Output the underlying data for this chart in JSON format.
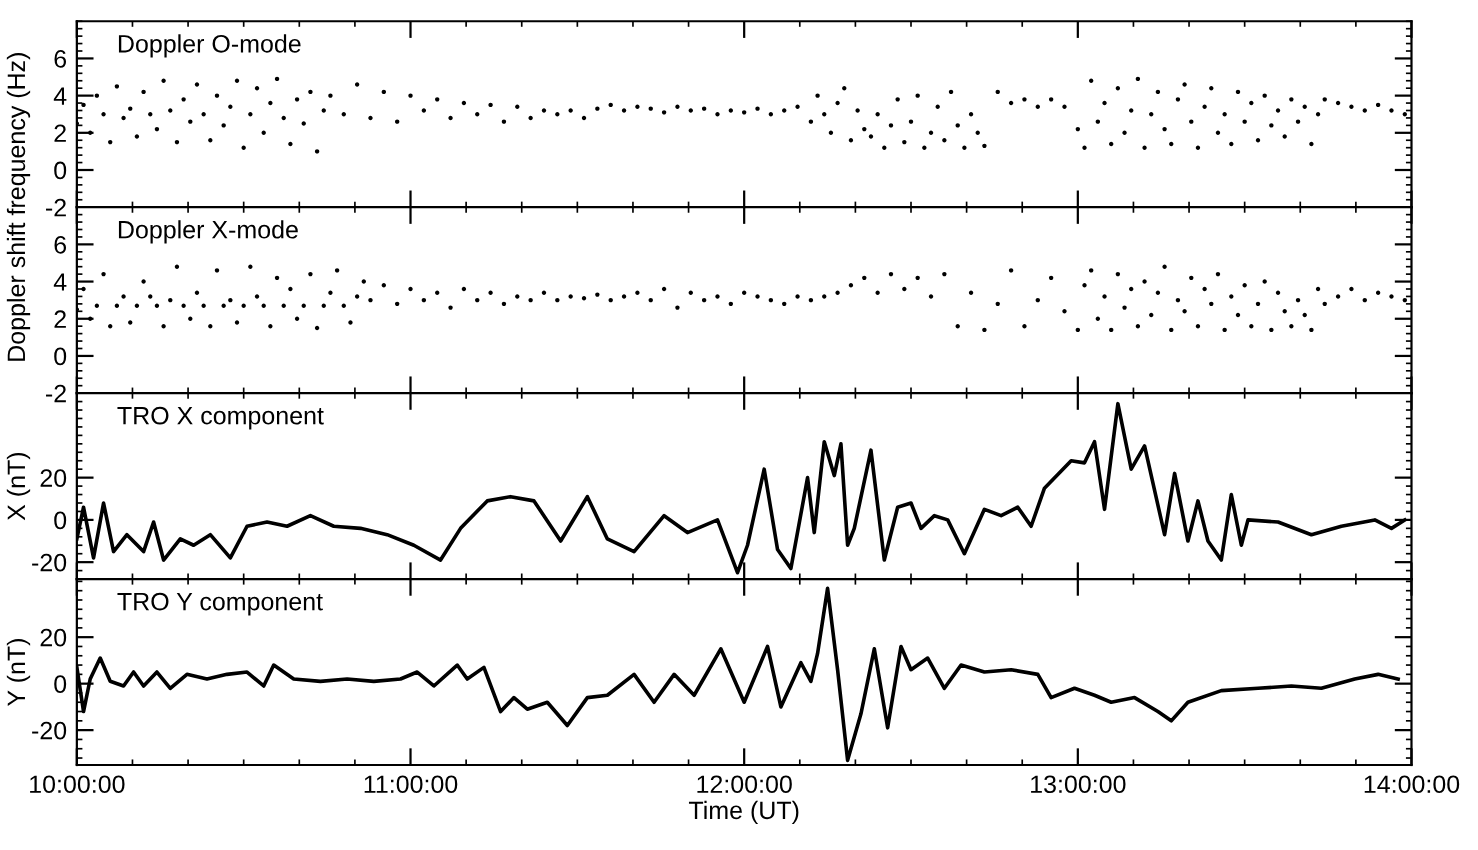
{
  "chart_data": [
    {
      "type": "scatter",
      "marker": "circle",
      "annotations": [
        "Doppler O-mode"
      ],
      "ylabel": "Doppler shift frequency (Hz)",
      "tick_labels": "y",
      "xlim": [
        10,
        14
      ],
      "ylim": [
        -2,
        8
      ],
      "yticks": [
        -2,
        0,
        2,
        4,
        6
      ],
      "xticks": [
        {
          "value": 10,
          "label": null
        },
        {
          "value": 11,
          "label": null
        },
        {
          "value": 12,
          "label": null
        },
        {
          "value": 13,
          "label": null
        },
        {
          "value": 14,
          "label": null
        }
      ],
      "series": [
        {
          "color": "#000000",
          "x": [
            10.0,
            10.02,
            10.04,
            10.06,
            10.08,
            10.1,
            10.12,
            10.14,
            10.16,
            10.18,
            10.2,
            10.22,
            10.24,
            10.26,
            10.28,
            10.3,
            10.32,
            10.34,
            10.36,
            10.38,
            10.4,
            10.42,
            10.44,
            10.46,
            10.48,
            10.5,
            10.52,
            10.54,
            10.56,
            10.58,
            10.6,
            10.62,
            10.64,
            10.66,
            10.68,
            10.7,
            10.72,
            10.74,
            10.76,
            10.8,
            10.84,
            10.88,
            10.92,
            10.96,
            11.0,
            11.04,
            11.08,
            11.12,
            11.16,
            11.2,
            11.24,
            11.28,
            11.32,
            11.36,
            11.4,
            11.44,
            11.48,
            11.52,
            11.56,
            11.6,
            11.64,
            11.68,
            11.72,
            11.76,
            11.8,
            11.84,
            11.88,
            11.92,
            11.96,
            12.0,
            12.04,
            12.08,
            12.12,
            12.16,
            12.2,
            12.22,
            12.24,
            12.26,
            12.28,
            12.3,
            12.32,
            12.34,
            12.36,
            12.38,
            12.4,
            12.42,
            12.44,
            12.46,
            12.48,
            12.5,
            12.52,
            12.54,
            12.56,
            12.58,
            12.6,
            12.62,
            12.64,
            12.66,
            12.68,
            12.7,
            12.72,
            12.76,
            12.8,
            12.84,
            12.88,
            12.92,
            12.96,
            13.0,
            13.02,
            13.04,
            13.06,
            13.08,
            13.1,
            13.12,
            13.14,
            13.16,
            13.18,
            13.2,
            13.22,
            13.24,
            13.26,
            13.28,
            13.3,
            13.32,
            13.34,
            13.36,
            13.38,
            13.4,
            13.42,
            13.44,
            13.46,
            13.48,
            13.5,
            13.52,
            13.54,
            13.56,
            13.58,
            13.6,
            13.62,
            13.64,
            13.66,
            13.68,
            13.7,
            13.72,
            13.74,
            13.78,
            13.82,
            13.86,
            13.9,
            13.94,
            13.98
          ],
          "values": [
            2.5,
            3.5,
            2.0,
            4.0,
            3.0,
            1.5,
            4.5,
            2.8,
            3.3,
            1.8,
            4.2,
            3.0,
            2.2,
            4.8,
            3.2,
            1.5,
            3.8,
            2.6,
            4.6,
            3.0,
            1.6,
            4.0,
            2.4,
            3.4,
            4.8,
            1.2,
            3.0,
            4.4,
            2.0,
            3.6,
            4.9,
            2.8,
            1.4,
            3.8,
            2.5,
            4.2,
            1.0,
            3.2,
            4.0,
            3.0,
            4.6,
            2.8,
            4.2,
            2.6,
            4.0,
            3.2,
            3.8,
            2.8,
            3.6,
            3.0,
            3.5,
            2.6,
            3.4,
            2.8,
            3.2,
            3.0,
            3.2,
            2.8,
            3.3,
            3.5,
            3.2,
            3.4,
            3.3,
            3.1,
            3.4,
            3.2,
            3.3,
            3.0,
            3.2,
            3.1,
            3.3,
            3.0,
            3.2,
            3.4,
            2.6,
            4.0,
            3.0,
            2.0,
            3.6,
            4.4,
            1.6,
            3.2,
            2.2,
            1.8,
            3.0,
            1.2,
            2.4,
            3.8,
            1.5,
            2.6,
            4.0,
            1.2,
            2.0,
            3.4,
            1.6,
            4.2,
            2.4,
            1.2,
            3.0,
            2.0,
            1.3,
            4.2,
            3.6,
            3.8,
            3.4,
            3.8,
            3.4,
            2.2,
            1.2,
            4.8,
            2.6,
            3.6,
            1.4,
            4.4,
            2.0,
            3.2,
            4.9,
            1.2,
            3.0,
            4.2,
            2.2,
            1.4,
            3.8,
            4.6,
            2.6,
            1.2,
            3.4,
            4.4,
            2.0,
            3.0,
            1.4,
            4.2,
            2.6,
            3.6,
            1.6,
            4.0,
            2.4,
            3.2,
            1.8,
            3.8,
            2.6,
            3.4,
            1.4,
            3.0,
            3.8,
            3.6,
            3.4,
            3.2,
            3.5,
            3.2,
            3.0
          ]
        }
      ]
    },
    {
      "type": "scatter",
      "marker": "circle",
      "annotations": [
        "Doppler X-mode"
      ],
      "tick_labels": "y",
      "xlim": [
        10,
        14
      ],
      "ylim": [
        -2,
        8
      ],
      "yticks": [
        -2,
        0,
        2,
        4,
        6
      ],
      "xticks": [
        {
          "value": 10,
          "label": null
        },
        {
          "value": 11,
          "label": null
        },
        {
          "value": 12,
          "label": null
        },
        {
          "value": 13,
          "label": null
        },
        {
          "value": 14,
          "label": null
        }
      ],
      "series": [
        {
          "color": "#000000",
          "x": [
            10.0,
            10.02,
            10.04,
            10.06,
            10.08,
            10.1,
            10.12,
            10.14,
            10.16,
            10.18,
            10.2,
            10.22,
            10.24,
            10.26,
            10.28,
            10.3,
            10.32,
            10.34,
            10.36,
            10.38,
            10.4,
            10.42,
            10.44,
            10.46,
            10.48,
            10.5,
            10.52,
            10.54,
            10.56,
            10.58,
            10.6,
            10.62,
            10.64,
            10.66,
            10.68,
            10.7,
            10.72,
            10.74,
            10.76,
            10.78,
            10.8,
            10.82,
            10.84,
            10.86,
            10.88,
            10.92,
            10.96,
            11.0,
            11.04,
            11.08,
            11.12,
            11.16,
            11.2,
            11.24,
            11.28,
            11.32,
            11.36,
            11.4,
            11.44,
            11.48,
            11.52,
            11.56,
            11.6,
            11.64,
            11.68,
            11.72,
            11.76,
            11.8,
            11.84,
            11.88,
            11.92,
            11.96,
            12.0,
            12.04,
            12.08,
            12.12,
            12.16,
            12.2,
            12.24,
            12.28,
            12.32,
            12.36,
            12.4,
            12.44,
            12.48,
            12.52,
            12.56,
            12.6,
            12.64,
            12.68,
            12.72,
            12.76,
            12.8,
            12.84,
            12.88,
            12.92,
            12.96,
            13.0,
            13.02,
            13.04,
            13.06,
            13.08,
            13.1,
            13.12,
            13.14,
            13.16,
            13.18,
            13.2,
            13.22,
            13.24,
            13.26,
            13.28,
            13.3,
            13.32,
            13.34,
            13.36,
            13.38,
            13.4,
            13.42,
            13.44,
            13.46,
            13.48,
            13.5,
            13.52,
            13.54,
            13.56,
            13.58,
            13.6,
            13.62,
            13.64,
            13.66,
            13.68,
            13.7,
            13.72,
            13.74,
            13.78,
            13.82,
            13.86,
            13.9,
            13.94,
            13.98
          ],
          "values": [
            2.5,
            3.6,
            2.0,
            2.7,
            4.4,
            1.6,
            2.7,
            3.2,
            1.8,
            2.7,
            4.0,
            3.2,
            2.7,
            1.6,
            3.0,
            4.8,
            2.7,
            2.0,
            3.4,
            2.7,
            1.6,
            4.6,
            2.7,
            3.0,
            1.8,
            2.7,
            4.8,
            3.2,
            2.7,
            1.6,
            4.2,
            2.7,
            3.6,
            2.0,
            2.7,
            4.4,
            1.5,
            2.7,
            3.4,
            4.6,
            2.7,
            1.8,
            3.2,
            4.0,
            3.0,
            3.8,
            2.8,
            3.6,
            3.0,
            3.4,
            2.6,
            3.6,
            3.0,
            3.4,
            2.8,
            3.2,
            3.0,
            3.4,
            3.0,
            3.2,
            3.1,
            3.3,
            3.0,
            3.2,
            3.4,
            3.0,
            3.6,
            2.6,
            3.4,
            3.0,
            3.2,
            2.8,
            3.4,
            3.2,
            3.0,
            2.8,
            3.2,
            3.0,
            3.2,
            3.4,
            3.8,
            4.2,
            3.4,
            4.4,
            3.6,
            4.2,
            3.2,
            4.4,
            1.6,
            3.4,
            1.4,
            2.8,
            4.6,
            1.6,
            3.0,
            4.2,
            2.4,
            1.4,
            3.8,
            4.6,
            2.0,
            3.2,
            1.4,
            4.4,
            2.6,
            3.6,
            1.6,
            4.0,
            2.2,
            3.4,
            4.8,
            1.4,
            3.0,
            2.4,
            4.2,
            1.6,
            3.6,
            2.8,
            4.4,
            1.4,
            3.2,
            2.2,
            3.8,
            1.6,
            2.8,
            4.0,
            1.4,
            3.4,
            2.4,
            1.6,
            3.0,
            2.2,
            1.4,
            3.6,
            2.8,
            3.2,
            3.6,
            3.0,
            3.4,
            3.2,
            3.0
          ]
        }
      ]
    },
    {
      "type": "line",
      "annotations": [
        "TRO X component"
      ],
      "ylabel": "X (nT)",
      "tick_labels": "y",
      "xlim": [
        10,
        14
      ],
      "ylim": [
        -28,
        60
      ],
      "yticks": [
        -20,
        0,
        20
      ],
      "xticks": [
        {
          "value": 10,
          "label": null
        },
        {
          "value": 11,
          "label": null
        },
        {
          "value": 12,
          "label": null
        },
        {
          "value": 13,
          "label": null
        },
        {
          "value": 14,
          "label": null
        }
      ],
      "series": [
        {
          "color": "#000000",
          "x": [
            10.0,
            10.02,
            10.05,
            10.08,
            10.11,
            10.15,
            10.2,
            10.23,
            10.26,
            10.31,
            10.35,
            10.4,
            10.46,
            10.51,
            10.57,
            10.63,
            10.7,
            10.77,
            10.85,
            10.93,
            11.01,
            11.09,
            11.15,
            11.23,
            11.3,
            11.37,
            11.45,
            11.53,
            11.59,
            11.67,
            11.76,
            11.83,
            11.92,
            11.98,
            12.01,
            12.06,
            12.1,
            12.14,
            12.19,
            12.21,
            12.24,
            12.27,
            12.29,
            12.31,
            12.33,
            12.38,
            12.42,
            12.46,
            12.5,
            12.53,
            12.57,
            12.61,
            12.66,
            12.72,
            12.77,
            12.82,
            12.86,
            12.9,
            12.98,
            13.02,
            13.05,
            13.08,
            13.12,
            13.16,
            13.2,
            13.26,
            13.29,
            13.33,
            13.36,
            13.39,
            13.43,
            13.46,
            13.49,
            13.51,
            13.6,
            13.7,
            13.79,
            13.89,
            13.94,
            13.98
          ],
          "values": [
            -9,
            6,
            -18,
            8,
            -15,
            -7,
            -15,
            -1,
            -19,
            -9,
            -12,
            -7,
            -18,
            -3,
            -1,
            -3,
            2,
            -3,
            -4,
            -7,
            -12,
            -19,
            -4,
            9,
            11,
            9,
            -10,
            11,
            -9,
            -15,
            2,
            -6,
            0,
            -25,
            -12,
            24,
            -14,
            -23,
            20,
            -6,
            37,
            21,
            36,
            -12,
            -4,
            33,
            -19,
            6,
            8,
            -4,
            2,
            0,
            -16,
            5,
            2,
            6,
            -3,
            15,
            28,
            27,
            37,
            5,
            55,
            24,
            35,
            -7,
            22,
            -10,
            9,
            -10,
            -19,
            12,
            -12,
            0,
            -1,
            -7,
            -3,
            0,
            -4,
            0
          ]
        }
      ]
    },
    {
      "type": "line",
      "annotations": [
        "TRO Y component"
      ],
      "ylabel": "Y (nT)",
      "xlabel": "Time (UT)",
      "xlim": [
        10,
        14
      ],
      "ylim": [
        -35,
        45
      ],
      "yticks": [
        -20,
        0,
        20
      ],
      "xticks": [
        {
          "value": 10,
          "label": "10:00:00"
        },
        {
          "value": 11,
          "label": "11:00:00"
        },
        {
          "value": 12,
          "label": "12:00:00"
        },
        {
          "value": 13,
          "label": "13:00:00"
        },
        {
          "value": 14,
          "label": "14:00:00"
        }
      ],
      "series": [
        {
          "color": "#000000",
          "x": [
            10.0,
            10.02,
            10.04,
            10.07,
            10.1,
            10.14,
            10.17,
            10.2,
            10.24,
            10.28,
            10.33,
            10.39,
            10.45,
            10.51,
            10.56,
            10.59,
            10.65,
            10.73,
            10.81,
            10.89,
            10.97,
            11.02,
            11.07,
            11.14,
            11.17,
            11.22,
            11.27,
            11.31,
            11.35,
            11.41,
            11.47,
            11.53,
            11.59,
            11.67,
            11.73,
            11.79,
            11.85,
            11.93,
            12.0,
            12.07,
            12.11,
            12.17,
            12.2,
            12.22,
            12.25,
            12.28,
            12.31,
            12.35,
            12.39,
            12.43,
            12.47,
            12.5,
            12.55,
            12.6,
            12.65,
            12.72,
            12.8,
            12.88,
            12.92,
            12.99,
            13.05,
            13.1,
            13.17,
            13.24,
            13.28,
            13.33,
            13.43,
            13.54,
            13.64,
            13.73,
            13.83,
            13.9,
            13.96
          ],
          "values": [
            7,
            -12,
            2,
            11,
            1,
            -1,
            5,
            -1,
            5,
            -2,
            4,
            2,
            4,
            5,
            -1,
            8,
            2,
            1,
            2,
            1,
            2,
            5,
            -1,
            8,
            2,
            7,
            -12,
            -6,
            -11,
            -8,
            -18,
            -6,
            -5,
            4,
            -8,
            4,
            -5,
            15,
            -8,
            16,
            -10,
            9,
            1,
            13,
            41,
            6,
            -33,
            -13,
            15,
            -19,
            16,
            6,
            11,
            -2,
            8,
            5,
            6,
            4,
            -6,
            -2,
            -5,
            -8,
            -6,
            -12,
            -16,
            -8,
            -3,
            -2,
            -1,
            -2,
            2,
            4,
            2
          ]
        }
      ]
    }
  ]
}
